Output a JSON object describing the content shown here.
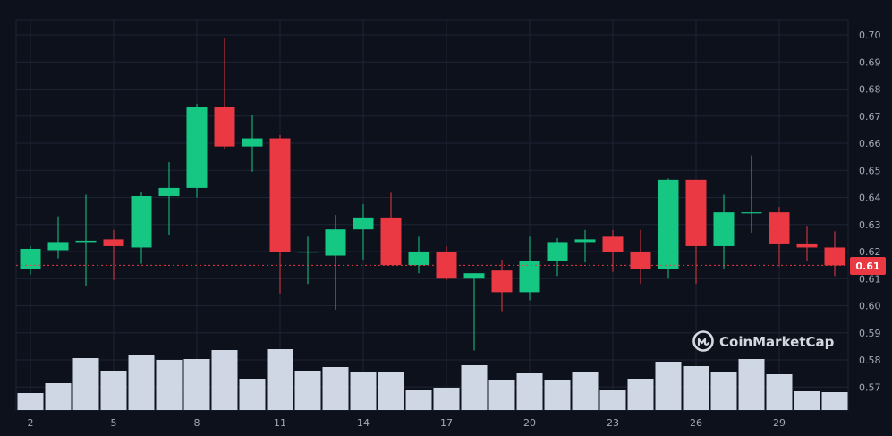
{
  "watermark": {
    "brand": "CoinMarketCap",
    "logo_icon": "coinmarketcap-logo-icon"
  },
  "price_badge": {
    "label": "0.61"
  },
  "colors": {
    "background": "#0d111c",
    "grid": "#1e2433",
    "up": "#16c784",
    "down": "#ea3943",
    "volume": "#cfd6e4",
    "axis_text": "#a3a9b8",
    "badge": "#ea3943",
    "price_line": "#ea3943"
  },
  "chart_data": {
    "type": "candlestick",
    "title": "",
    "xlabel": "",
    "ylabel": "",
    "ylim": [
      0.562,
      0.706
    ],
    "y_ticks": [
      "0.70",
      "0.69",
      "0.68",
      "0.67",
      "0.66",
      "0.65",
      "0.64",
      "0.63",
      "0.62",
      "0.61",
      "0.60",
      "0.59",
      "0.58",
      "0.57"
    ],
    "x_ticks": [
      "2",
      "5",
      "8",
      "11",
      "14",
      "17",
      "20",
      "23",
      "26",
      "29"
    ],
    "x_tick_days": [
      2,
      5,
      8,
      11,
      14,
      17,
      20,
      23,
      26,
      29
    ],
    "grid": true,
    "current_price": 0.6149,
    "current_price_label": "0.61",
    "days": [
      2,
      3,
      4,
      5,
      6,
      7,
      8,
      9,
      10,
      11,
      12,
      13,
      14,
      15,
      16,
      17,
      18,
      19,
      20,
      21,
      22,
      23,
      24,
      25,
      26,
      27,
      28,
      29,
      30,
      31
    ],
    "open": [
      0.6135,
      0.6205,
      0.6235,
      0.6245,
      0.6215,
      0.6405,
      0.6435,
      0.6733,
      0.6588,
      0.6618,
      0.62,
      0.6185,
      0.6282,
      0.6326,
      0.615,
      0.6197,
      0.61,
      0.613,
      0.605,
      0.6165,
      0.6235,
      0.6255,
      0.62,
      0.6135,
      0.6465,
      0.622,
      0.6345,
      0.6345,
      0.623,
      0.6215
    ],
    "high": [
      0.622,
      0.633,
      0.641,
      0.628,
      0.642,
      0.653,
      0.6745,
      0.699,
      0.6705,
      0.663,
      0.6255,
      0.6335,
      0.6375,
      0.6417,
      0.6255,
      0.622,
      0.612,
      0.617,
      0.6255,
      0.625,
      0.628,
      0.628,
      0.628,
      0.647,
      0.6465,
      0.641,
      0.6555,
      0.6365,
      0.6295,
      0.6275
    ],
    "low": [
      0.6115,
      0.6175,
      0.6075,
      0.6095,
      0.6155,
      0.626,
      0.64,
      0.658,
      0.6495,
      0.6045,
      0.608,
      0.5985,
      0.617,
      0.615,
      0.612,
      0.6095,
      0.5835,
      0.598,
      0.602,
      0.611,
      0.616,
      0.6125,
      0.608,
      0.61,
      0.608,
      0.6135,
      0.627,
      0.6145,
      0.6165,
      0.611
    ],
    "close": [
      0.621,
      0.6235,
      0.624,
      0.622,
      0.6405,
      0.6435,
      0.6733,
      0.6588,
      0.6618,
      0.62,
      0.62,
      0.6282,
      0.6326,
      0.615,
      0.6197,
      0.61,
      0.612,
      0.605,
      0.6165,
      0.6235,
      0.6245,
      0.62,
      0.6135,
      0.6465,
      0.622,
      0.6345,
      0.6345,
      0.623,
      0.6215,
      0.6149
    ],
    "volume": [
      0.19,
      0.3,
      0.58,
      0.44,
      0.62,
      0.56,
      0.57,
      0.67,
      0.35,
      0.68,
      0.44,
      0.48,
      0.43,
      0.42,
      0.22,
      0.25,
      0.5,
      0.34,
      0.41,
      0.34,
      0.42,
      0.22,
      0.35,
      0.54,
      0.49,
      0.43,
      0.57,
      0.4,
      0.21,
      0.2
    ]
  }
}
